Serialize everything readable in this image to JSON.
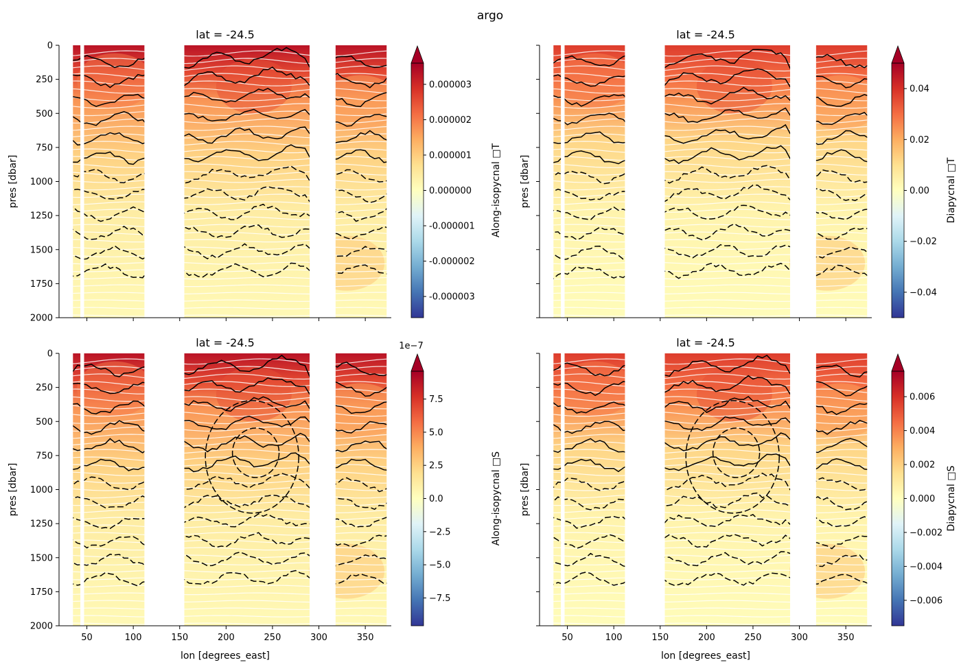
{
  "suptitle": "argo",
  "colors": {
    "colormap": [
      "#313695",
      "#4575b4",
      "#74add1",
      "#abd9e9",
      "#e0f3f8",
      "#ffffbf",
      "#fee090",
      "#fdae61",
      "#f46d43",
      "#d73027",
      "#a50026"
    ],
    "isopycnal_lines": "#ffffff",
    "contours": "#000000"
  },
  "chart_data": [
    {
      "type": "heatmap",
      "title": "lat = -24.5",
      "xlabel": "",
      "ylabel": "pres [dbar]",
      "xlim": [
        20,
        378
      ],
      "ylim": [
        2000,
        0
      ],
      "x_ticks": [
        50,
        100,
        150,
        200,
        250,
        300,
        350
      ],
      "x_tick_labels": [],
      "y_ticks": [
        0,
        250,
        500,
        750,
        1000,
        1250,
        1500,
        1750,
        2000
      ],
      "y_tick_labels": [
        "0",
        "250",
        "500",
        "750",
        "1000",
        "1250",
        "1500",
        "1750",
        "2000"
      ],
      "colorbar": {
        "label": "Along-isopycnal □T",
        "range": [
          -3.6e-06,
          3.6e-06
        ],
        "ticks": [
          3e-06,
          2e-06,
          1e-06,
          0,
          -1e-06,
          -2e-06,
          -3e-06
        ],
        "tick_labels": [
          "0.000003",
          "0.000002",
          "0.000001",
          "0.000000",
          "-0.000001",
          "-0.000002",
          "-0.000003"
        ],
        "offset_text": "",
        "extend": "max"
      }
    },
    {
      "type": "heatmap",
      "title": "lat = -24.5",
      "xlabel": "",
      "ylabel": "pres [dbar]",
      "xlim": [
        20,
        378
      ],
      "ylim": [
        2000,
        0
      ],
      "x_ticks": [
        50,
        100,
        150,
        200,
        250,
        300,
        350
      ],
      "x_tick_labels": [],
      "y_ticks": [
        0,
        250,
        500,
        750,
        1000,
        1250,
        1500,
        1750,
        2000
      ],
      "y_tick_labels": [],
      "colorbar": {
        "label": "Diapycnal □T",
        "range": [
          -0.05,
          0.05
        ],
        "ticks": [
          0.04,
          0.02,
          0,
          -0.02,
          -0.04
        ],
        "tick_labels": [
          "0.04",
          "0.02",
          "0.00",
          "−0.02",
          "−0.04"
        ],
        "offset_text": "",
        "extend": "max"
      }
    },
    {
      "type": "heatmap",
      "title": "lat = -24.5",
      "xlabel": "lon [degrees_east]",
      "ylabel": "pres [dbar]",
      "xlim": [
        20,
        378
      ],
      "ylim": [
        2000,
        0
      ],
      "x_ticks": [
        50,
        100,
        150,
        200,
        250,
        300,
        350
      ],
      "x_tick_labels": [
        "50",
        "100",
        "150",
        "200",
        "250",
        "300",
        "350"
      ],
      "y_ticks": [
        0,
        250,
        500,
        750,
        1000,
        1250,
        1500,
        1750,
        2000
      ],
      "y_tick_labels": [
        "0",
        "250",
        "500",
        "750",
        "1000",
        "1250",
        "1500",
        "1750",
        "2000"
      ],
      "colorbar": {
        "label": "Along-isopycnal □S",
        "range": [
          -9.6,
          9.6
        ],
        "ticks": [
          7.5,
          5.0,
          2.5,
          0,
          -2.5,
          -5.0,
          -7.5
        ],
        "tick_labels": [
          "7.5",
          "5.0",
          "2.5",
          "0.0",
          "−2.5",
          "−5.0",
          "−7.5"
        ],
        "offset_text": "1e−7",
        "extend": "max"
      }
    },
    {
      "type": "heatmap",
      "title": "lat = -24.5",
      "xlabel": "lon [degrees_east]",
      "ylabel": "pres [dbar]",
      "xlim": [
        20,
        378
      ],
      "ylim": [
        2000,
        0
      ],
      "x_ticks": [
        50,
        100,
        150,
        200,
        250,
        300,
        350
      ],
      "x_tick_labels": [
        "50",
        "100",
        "150",
        "200",
        "250",
        "300",
        "350"
      ],
      "y_ticks": [
        0,
        250,
        500,
        750,
        1000,
        1250,
        1500,
        1750,
        2000
      ],
      "y_tick_labels": [],
      "colorbar": {
        "label": "Diapycnal □S",
        "range": [
          -0.0075,
          0.0075
        ],
        "ticks": [
          0.006,
          0.004,
          0.002,
          0,
          -0.002,
          -0.004,
          -0.006
        ],
        "tick_labels": [
          "0.006",
          "0.004",
          "0.002",
          "0.000",
          "−0.002",
          "−0.004",
          "−0.006"
        ],
        "offset_text": "",
        "extend": "max"
      }
    }
  ]
}
